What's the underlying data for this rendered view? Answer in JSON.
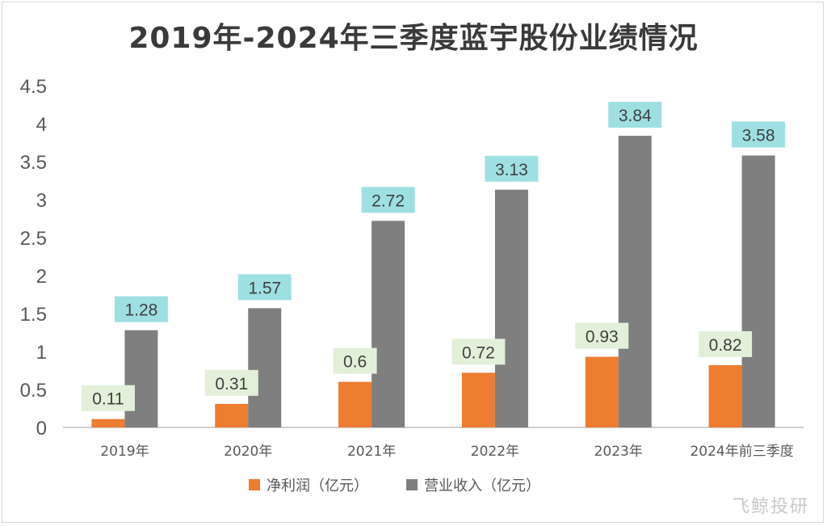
{
  "chart_data": {
    "type": "bar",
    "title": "2019年-2024年三季度蓝宇股份业绩情况",
    "categories": [
      "2019年",
      "2020年",
      "2021年",
      "2022年",
      "2023年",
      "2024年前三季度"
    ],
    "series": [
      {
        "name": "净利润（亿元）",
        "values": [
          0.11,
          0.31,
          0.6,
          0.72,
          0.93,
          0.82
        ],
        "color": "#ED7D31",
        "label_bg": "#E2F0D9"
      },
      {
        "name": "营业收入（亿元）",
        "values": [
          1.28,
          1.57,
          2.72,
          3.13,
          3.84,
          3.58
        ],
        "color": "#7F7F7F",
        "label_bg": "#9EDFE2"
      }
    ],
    "data_labels": [
      [
        "0.11",
        "0.31",
        "0.6",
        "0.72",
        "0.93",
        "0.82"
      ],
      [
        "1.28",
        "1.57",
        "2.72",
        "3.13",
        "3.84",
        "3.58"
      ]
    ],
    "yticks": [
      "0",
      "0.5",
      "1",
      "1.5",
      "2",
      "2.5",
      "3",
      "3.5",
      "4",
      "4.5"
    ],
    "ylim": [
      0,
      4.5
    ],
    "xlabel": "",
    "ylabel": "",
    "grid": false,
    "legend_position": "bottom"
  },
  "watermark": "飞鲸投研"
}
